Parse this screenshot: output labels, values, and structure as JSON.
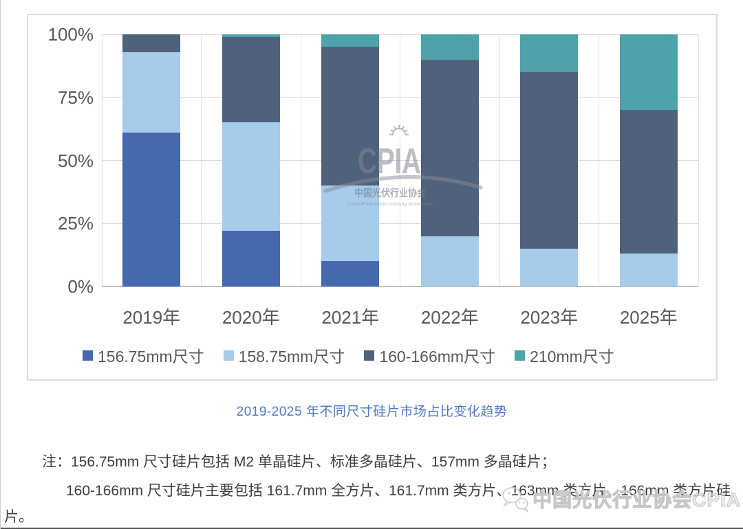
{
  "caption": {
    "text": "2019-2025 年不同尺寸硅片市场占比变化趋势"
  },
  "note": {
    "line1": "注：156.75mm 尺寸硅片包括 M2 单晶硅片、标准多晶硅片、157mm 多晶硅片；",
    "line2": "160-166mm 尺寸硅片主要包括 161.7mm 全方片、161.7mm 类方片、163mm 类方片、166mm 类方片硅",
    "line3": "片。"
  },
  "watermark_center": {
    "acronym": "CPIA",
    "cn": "中国光伏行业协会",
    "en": "China Photovoltaic Industry Association"
  },
  "watermark_bottom": {
    "icon": "wechat-icon",
    "text": "中国光伏行业协会CPIA"
  },
  "colors": {
    "series_156": "#4568AE",
    "series_158": "#A7CBEB",
    "series_160_166": "#50617C",
    "series_210": "#4EA2AB",
    "caption_accent": "#4E79C5",
    "axis_text": "#595959",
    "gridline": "#D9D9D9"
  },
  "chart_data": {
    "type": "bar",
    "stacked": true,
    "title": "2019-2025 年不同尺寸硅片市场占比变化趋势",
    "categories": [
      "2019年",
      "2020年",
      "2021年",
      "2022年",
      "2023年",
      "2025年"
    ],
    "series": [
      {
        "name": "156.75mm尺寸",
        "color": "#4568AE",
        "values": [
          61,
          22,
          10,
          0,
          0,
          0
        ]
      },
      {
        "name": "158.75mm尺寸",
        "color": "#A7CBEB",
        "values": [
          32,
          43,
          30,
          20,
          15,
          13
        ]
      },
      {
        "name": "160-166mm尺寸",
        "color": "#50617C",
        "values": [
          7,
          34,
          55,
          70,
          70,
          57
        ]
      },
      {
        "name": "210mm尺寸",
        "color": "#4EA2AB",
        "values": [
          0,
          1,
          5,
          10,
          15,
          30
        ]
      }
    ],
    "xlabel": "",
    "ylabel": "",
    "ylim": [
      0,
      100
    ],
    "yticks": [
      "0%",
      "25%",
      "50%",
      "75%",
      "100%"
    ],
    "grid": true,
    "legend_position": "bottom"
  }
}
